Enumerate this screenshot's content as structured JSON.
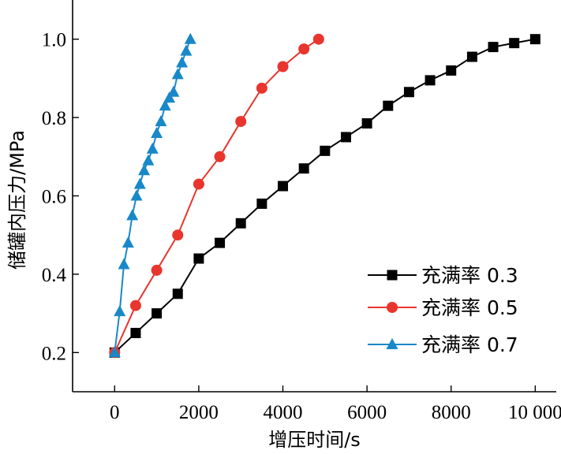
{
  "chart_data": {
    "type": "line",
    "title": "",
    "xlabel": "增压时间/s",
    "ylabel": "储罐内压力/MPa",
    "xlim": [
      -1000,
      10500
    ],
    "ylim": [
      0.1,
      1.1
    ],
    "xticks": [
      0,
      2000,
      4000,
      6000,
      8000,
      10000
    ],
    "xtick_labels": [
      "0",
      "2000",
      "4000",
      "6000",
      "8000",
      "10 000"
    ],
    "yticks": [
      0.2,
      0.4,
      0.6,
      0.8,
      1.0
    ],
    "ytick_labels": [
      "0.2",
      "0.4",
      "0.6",
      "0.8",
      "1.0"
    ],
    "grid": false,
    "legend_position": "lower-right",
    "series": [
      {
        "name": "充满率 0.3",
        "color": "#000000",
        "marker": "square",
        "x": [
          0,
          500,
          1000,
          1500,
          2000,
          2500,
          3000,
          3500,
          4000,
          4500,
          5000,
          5500,
          6000,
          6500,
          7000,
          7500,
          8000,
          8500,
          9000,
          9500,
          10000
        ],
        "y": [
          0.2,
          0.25,
          0.3,
          0.35,
          0.44,
          0.48,
          0.53,
          0.58,
          0.625,
          0.67,
          0.715,
          0.75,
          0.785,
          0.83,
          0.865,
          0.895,
          0.92,
          0.955,
          0.98,
          0.99,
          1.0
        ]
      },
      {
        "name": "充满率 0.5",
        "color": "#e8352d",
        "marker": "circle",
        "x": [
          0,
          500,
          1000,
          1500,
          2000,
          2500,
          3000,
          3500,
          4000,
          4500,
          4850
        ],
        "y": [
          0.2,
          0.32,
          0.41,
          0.5,
          0.63,
          0.7,
          0.79,
          0.875,
          0.93,
          0.975,
          1.0
        ]
      },
      {
        "name": "充满率 0.7",
        "color": "#1888c8",
        "marker": "triangle",
        "x": [
          0,
          120,
          220,
          320,
          420,
          520,
          600,
          700,
          800,
          900,
          1000,
          1100,
          1200,
          1300,
          1400,
          1500,
          1600,
          1700,
          1800
        ],
        "y": [
          0.2,
          0.305,
          0.425,
          0.48,
          0.55,
          0.6,
          0.63,
          0.665,
          0.69,
          0.72,
          0.76,
          0.79,
          0.83,
          0.85,
          0.865,
          0.91,
          0.94,
          0.97,
          1.0
        ]
      }
    ]
  }
}
